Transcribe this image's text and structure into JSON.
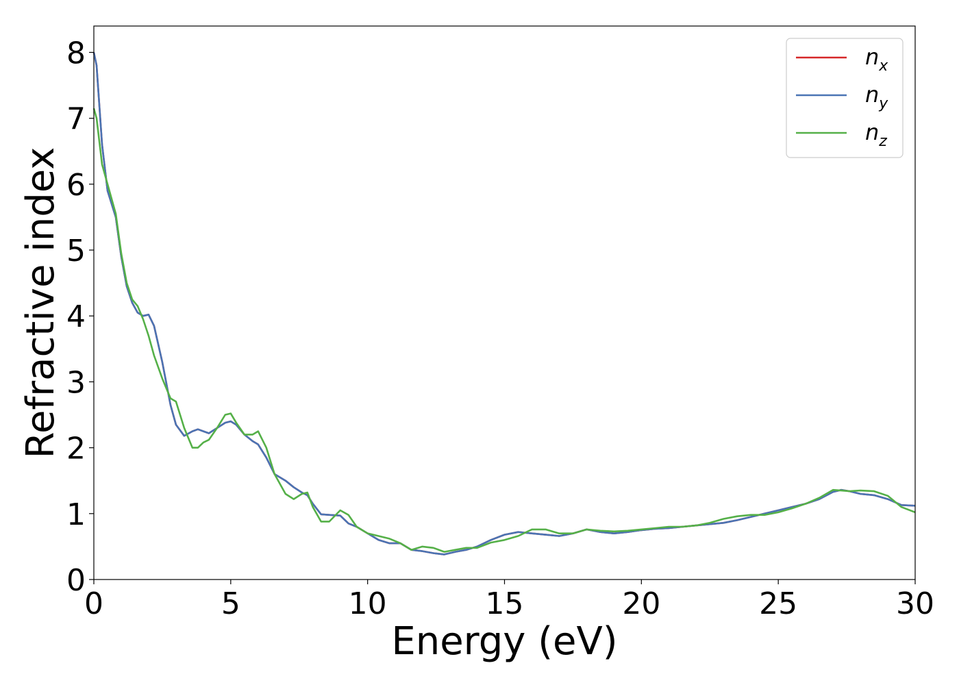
{
  "chart_data": {
    "type": "line",
    "title": "",
    "xlabel": "Energy (eV)",
    "ylabel": "Refractive index",
    "xlim": [
      0,
      30
    ],
    "ylim": [
      0,
      8.4
    ],
    "xticks": [
      "0",
      "5",
      "10",
      "15",
      "20",
      "25",
      "30"
    ],
    "yticks": [
      "0",
      "1",
      "2",
      "3",
      "4",
      "5",
      "6",
      "7",
      "8"
    ],
    "grid": false,
    "legend_position": "top-right",
    "series": [
      {
        "name": "n",
        "subscript": "x",
        "color": "#d62728",
        "x": [
          0,
          0.1,
          0.3,
          0.5,
          0.8,
          1.0,
          1.2,
          1.4,
          1.6,
          1.8,
          2.0,
          2.2,
          2.5,
          2.8,
          3.0,
          3.3,
          3.6,
          3.8,
          4.0,
          4.2,
          4.5,
          4.8,
          5.0,
          5.2,
          5.5,
          5.8,
          6.0,
          6.3,
          6.6,
          7.0,
          7.3,
          7.6,
          7.8,
          8.0,
          8.3,
          8.6,
          9.0,
          9.3,
          9.6,
          10.0,
          10.4,
          10.8,
          11.2,
          11.6,
          12.0,
          12.4,
          12.8,
          13.2,
          13.6,
          14.0,
          14.5,
          15.0,
          15.5,
          16.0,
          16.5,
          17.0,
          17.5,
          18.0,
          18.5,
          19.0,
          19.5,
          20.0,
          20.5,
          21.0,
          21.5,
          22.0,
          22.5,
          23.0,
          23.5,
          24.0,
          24.5,
          25.0,
          25.5,
          26.0,
          26.5,
          27.0,
          27.3,
          27.6,
          28.0,
          28.5,
          29.0,
          29.5,
          30.0
        ],
        "y": [
          8.0,
          7.8,
          6.6,
          5.9,
          5.5,
          4.9,
          4.45,
          4.2,
          4.05,
          4.0,
          4.02,
          3.85,
          3.3,
          2.65,
          2.35,
          2.18,
          2.25,
          2.28,
          2.25,
          2.22,
          2.3,
          2.38,
          2.4,
          2.35,
          2.2,
          2.1,
          2.05,
          1.85,
          1.6,
          1.5,
          1.4,
          1.32,
          1.28,
          1.15,
          0.99,
          0.98,
          0.97,
          0.85,
          0.8,
          0.7,
          0.6,
          0.55,
          0.55,
          0.45,
          0.43,
          0.4,
          0.38,
          0.42,
          0.45,
          0.5,
          0.6,
          0.68,
          0.72,
          0.7,
          0.68,
          0.66,
          0.7,
          0.76,
          0.72,
          0.7,
          0.72,
          0.75,
          0.77,
          0.78,
          0.8,
          0.82,
          0.84,
          0.86,
          0.9,
          0.95,
          1.0,
          1.05,
          1.1,
          1.15,
          1.22,
          1.33,
          1.36,
          1.34,
          1.3,
          1.28,
          1.22,
          1.13,
          1.12
        ]
      },
      {
        "name": "n",
        "subscript": "y",
        "color": "#4a74b4",
        "x": [
          0,
          0.1,
          0.3,
          0.5,
          0.8,
          1.0,
          1.2,
          1.4,
          1.6,
          1.8,
          2.0,
          2.2,
          2.5,
          2.8,
          3.0,
          3.3,
          3.6,
          3.8,
          4.0,
          4.2,
          4.5,
          4.8,
          5.0,
          5.2,
          5.5,
          5.8,
          6.0,
          6.3,
          6.6,
          7.0,
          7.3,
          7.6,
          7.8,
          8.0,
          8.3,
          8.6,
          9.0,
          9.3,
          9.6,
          10.0,
          10.4,
          10.8,
          11.2,
          11.6,
          12.0,
          12.4,
          12.8,
          13.2,
          13.6,
          14.0,
          14.5,
          15.0,
          15.5,
          16.0,
          16.5,
          17.0,
          17.5,
          18.0,
          18.5,
          19.0,
          19.5,
          20.0,
          20.5,
          21.0,
          21.5,
          22.0,
          22.5,
          23.0,
          23.5,
          24.0,
          24.5,
          25.0,
          25.5,
          26.0,
          26.5,
          27.0,
          27.3,
          27.6,
          28.0,
          28.5,
          29.0,
          29.5,
          30.0
        ],
        "y": [
          8.0,
          7.8,
          6.6,
          5.9,
          5.5,
          4.9,
          4.45,
          4.2,
          4.05,
          4.0,
          4.02,
          3.85,
          3.3,
          2.65,
          2.35,
          2.18,
          2.25,
          2.28,
          2.25,
          2.22,
          2.3,
          2.38,
          2.4,
          2.35,
          2.2,
          2.1,
          2.05,
          1.85,
          1.6,
          1.5,
          1.4,
          1.32,
          1.28,
          1.15,
          0.99,
          0.98,
          0.97,
          0.85,
          0.8,
          0.7,
          0.6,
          0.55,
          0.55,
          0.45,
          0.43,
          0.4,
          0.38,
          0.42,
          0.45,
          0.5,
          0.6,
          0.68,
          0.72,
          0.7,
          0.68,
          0.66,
          0.7,
          0.76,
          0.72,
          0.7,
          0.72,
          0.75,
          0.77,
          0.78,
          0.8,
          0.82,
          0.84,
          0.86,
          0.9,
          0.95,
          1.0,
          1.05,
          1.1,
          1.15,
          1.22,
          1.33,
          1.36,
          1.34,
          1.3,
          1.28,
          1.22,
          1.13,
          1.12
        ]
      },
      {
        "name": "n",
        "subscript": "z",
        "color": "#55b048",
        "x": [
          0,
          0.1,
          0.3,
          0.5,
          0.8,
          1.0,
          1.2,
          1.4,
          1.6,
          1.8,
          2.0,
          2.2,
          2.5,
          2.8,
          3.0,
          3.3,
          3.6,
          3.8,
          4.0,
          4.2,
          4.5,
          4.8,
          5.0,
          5.2,
          5.5,
          5.8,
          6.0,
          6.3,
          6.6,
          7.0,
          7.3,
          7.6,
          7.8,
          8.0,
          8.3,
          8.6,
          9.0,
          9.3,
          9.6,
          10.0,
          10.4,
          10.8,
          11.2,
          11.6,
          12.0,
          12.4,
          12.8,
          13.2,
          13.6,
          14.0,
          14.5,
          15.0,
          15.5,
          16.0,
          16.5,
          17.0,
          17.5,
          18.0,
          18.5,
          19.0,
          19.5,
          20.0,
          20.5,
          21.0,
          21.5,
          22.0,
          22.5,
          23.0,
          23.5,
          24.0,
          24.5,
          25.0,
          25.5,
          26.0,
          26.5,
          27.0,
          27.3,
          27.6,
          28.0,
          28.5,
          29.0,
          29.5,
          30.0
        ],
        "y": [
          7.15,
          7.0,
          6.3,
          6.0,
          5.55,
          4.95,
          4.5,
          4.25,
          4.15,
          3.95,
          3.7,
          3.4,
          3.05,
          2.75,
          2.7,
          2.3,
          2.0,
          2.0,
          2.08,
          2.12,
          2.3,
          2.5,
          2.52,
          2.38,
          2.2,
          2.2,
          2.25,
          2.0,
          1.6,
          1.3,
          1.22,
          1.3,
          1.32,
          1.1,
          0.88,
          0.88,
          1.05,
          0.98,
          0.8,
          0.7,
          0.66,
          0.62,
          0.55,
          0.45,
          0.5,
          0.48,
          0.42,
          0.45,
          0.48,
          0.48,
          0.56,
          0.6,
          0.66,
          0.76,
          0.76,
          0.7,
          0.7,
          0.76,
          0.74,
          0.73,
          0.74,
          0.76,
          0.78,
          0.8,
          0.8,
          0.82,
          0.86,
          0.92,
          0.96,
          0.98,
          0.98,
          1.02,
          1.08,
          1.15,
          1.24,
          1.36,
          1.35,
          1.34,
          1.35,
          1.34,
          1.27,
          1.1,
          1.02
        ]
      }
    ]
  }
}
